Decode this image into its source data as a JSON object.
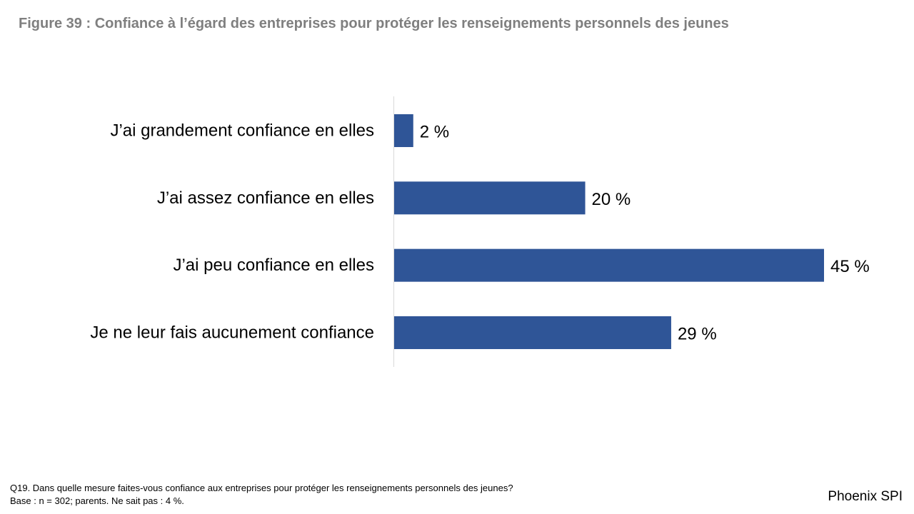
{
  "title": "Figure 39 : Confiance à l’égard des entreprises pour protéger les renseignements personnels des jeunes",
  "chart_data": {
    "type": "bar",
    "orientation": "horizontal",
    "categories": [
      "J’ai grandement confiance en elles",
      "J’ai assez confiance en elles",
      "J’ai peu confiance en elles",
      "Je ne leur fais aucunement confiance"
    ],
    "values": [
      2,
      20,
      45,
      29
    ],
    "value_labels": [
      "2 %",
      "20 %",
      "45 %",
      "29 %"
    ],
    "xlim": [
      0,
      45
    ],
    "bar_color": "#2f5597",
    "grid": false,
    "legend": "none"
  },
  "footnote": {
    "question": "Q19. Dans quelle mesure faites-vous confiance aux entreprises pour protéger les renseignements personnels des jeunes?",
    "base": "Base : n = 302; parents. Ne sait pas : 4 %."
  },
  "brand": "Phoenix SPI"
}
